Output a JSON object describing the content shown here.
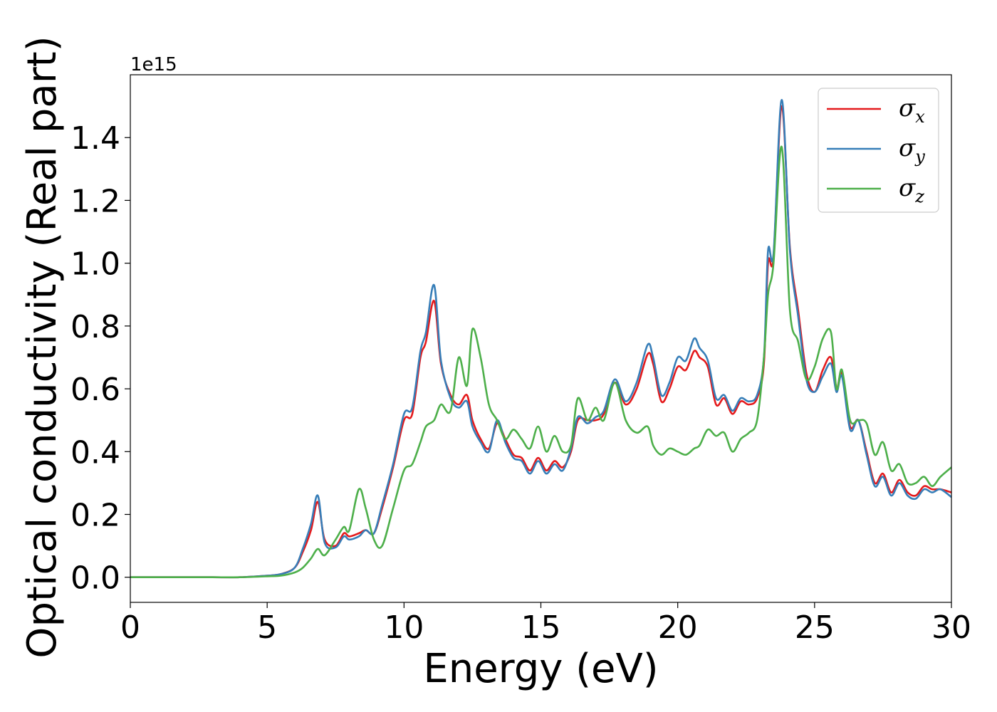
{
  "chart_data": {
    "type": "line",
    "title": "",
    "xlabel": "Energy (eV)",
    "ylabel": "Optical conductivity (Real part)",
    "y_offset_label": "1e15",
    "y_scale": 1000000000000000.0,
    "xlim": [
      0,
      30
    ],
    "ylim": [
      -0.08,
      1.6
    ],
    "xticks": [
      0,
      5,
      10,
      15,
      20,
      25,
      30
    ],
    "yticks": [
      0.0,
      0.2,
      0.4,
      0.6,
      0.8,
      1.0,
      1.2,
      1.4
    ],
    "grid": false,
    "legend_position": "top-right",
    "x": [
      0,
      1,
      2,
      3,
      4,
      5,
      5.5,
      6,
      6.3,
      6.6,
      6.85,
      7.1,
      7.5,
      7.8,
      8.0,
      8.35,
      8.6,
      8.9,
      9.2,
      9.6,
      10.0,
      10.3,
      10.6,
      10.8,
      11.1,
      11.35,
      11.7,
      12.0,
      12.3,
      12.5,
      12.8,
      13.1,
      13.4,
      13.7,
      14.0,
      14.3,
      14.6,
      14.9,
      15.2,
      15.5,
      15.8,
      16.1,
      16.35,
      16.7,
      17.0,
      17.3,
      17.7,
      18.1,
      18.5,
      18.9,
      19.1,
      19.4,
      19.7,
      20.0,
      20.3,
      20.6,
      20.8,
      21.1,
      21.4,
      21.7,
      22.0,
      22.3,
      22.6,
      22.9,
      23.15,
      23.3,
      23.5,
      23.8,
      24.1,
      24.4,
      24.7,
      25.0,
      25.3,
      25.6,
      25.8,
      26.0,
      26.3,
      26.6,
      26.9,
      27.2,
      27.5,
      27.8,
      28.1,
      28.4,
      28.7,
      29.0,
      29.3,
      29.6,
      30.0
    ],
    "series": [
      {
        "name": "σ_x",
        "label_base": "σ",
        "label_sub": "x",
        "color": "#e41a1c",
        "values": [
          0,
          0,
          0,
          0,
          0,
          0.005,
          0.01,
          0.03,
          0.08,
          0.15,
          0.24,
          0.12,
          0.1,
          0.14,
          0.13,
          0.14,
          0.15,
          0.14,
          0.22,
          0.35,
          0.5,
          0.52,
          0.7,
          0.75,
          0.88,
          0.68,
          0.58,
          0.55,
          0.58,
          0.5,
          0.44,
          0.41,
          0.49,
          0.44,
          0.39,
          0.38,
          0.34,
          0.38,
          0.34,
          0.37,
          0.35,
          0.4,
          0.5,
          0.5,
          0.5,
          0.52,
          0.62,
          0.55,
          0.6,
          0.71,
          0.68,
          0.56,
          0.6,
          0.67,
          0.66,
          0.72,
          0.7,
          0.67,
          0.55,
          0.57,
          0.52,
          0.56,
          0.55,
          0.57,
          0.68,
          1.0,
          1.02,
          1.5,
          1.05,
          0.85,
          0.65,
          0.59,
          0.66,
          0.7,
          0.6,
          0.65,
          0.48,
          0.5,
          0.4,
          0.3,
          0.33,
          0.27,
          0.31,
          0.27,
          0.26,
          0.29,
          0.28,
          0.28,
          0.27
        ],
        "sig_seq": [
          0,
          0,
          0,
          0,
          0,
          0.005,
          0.01,
          0.03,
          0.08,
          0.15,
          0.24,
          0.12,
          0.1,
          0.14,
          0.13,
          0.14,
          0.15,
          0.14,
          0.22,
          0.35,
          0.5,
          0.52,
          0.7,
          0.75,
          0.88,
          0.68,
          0.58,
          0.55,
          0.58,
          0.5,
          0.44,
          0.41,
          0.49,
          0.44,
          0.39,
          0.38,
          0.34,
          0.38,
          0.34,
          0.37,
          0.35,
          0.4,
          0.5,
          0.5,
          0.5,
          0.52,
          0.62,
          0.55,
          0.6,
          0.71,
          0.68,
          0.56,
          0.6,
          0.67,
          0.66,
          0.72,
          0.7,
          0.67,
          0.55,
          0.57,
          0.52,
          0.56,
          0.55,
          0.57,
          0.68,
          1.0,
          1.02,
          1.5,
          1.05,
          0.85,
          0.65,
          0.59,
          0.66,
          0.7,
          0.6,
          0.65,
          0.48,
          0.5,
          0.4,
          0.3,
          0.33,
          0.27,
          0.31,
          0.27,
          0.26,
          0.29,
          0.28,
          0.28,
          0.27
        ]
      },
      {
        "name": "σ_y",
        "label_base": "σ",
        "label_sub": "y",
        "color": "#377eb8",
        "values": [
          0,
          0,
          0,
          0,
          0,
          0.005,
          0.01,
          0.03,
          0.09,
          0.17,
          0.26,
          0.11,
          0.095,
          0.13,
          0.12,
          0.13,
          0.15,
          0.14,
          0.23,
          0.36,
          0.52,
          0.54,
          0.72,
          0.78,
          0.93,
          0.69,
          0.57,
          0.54,
          0.56,
          0.48,
          0.43,
          0.4,
          0.5,
          0.43,
          0.38,
          0.37,
          0.33,
          0.37,
          0.33,
          0.36,
          0.34,
          0.41,
          0.51,
          0.49,
          0.51,
          0.53,
          0.63,
          0.56,
          0.62,
          0.74,
          0.7,
          0.58,
          0.62,
          0.7,
          0.69,
          0.76,
          0.73,
          0.69,
          0.57,
          0.58,
          0.53,
          0.57,
          0.56,
          0.58,
          0.7,
          1.04,
          1.03,
          1.52,
          1.04,
          0.83,
          0.63,
          0.59,
          0.64,
          0.68,
          0.59,
          0.64,
          0.47,
          0.5,
          0.39,
          0.29,
          0.32,
          0.26,
          0.3,
          0.26,
          0.25,
          0.28,
          0.27,
          0.28,
          0.255
        ],
        "sig_seq": []
      },
      {
        "name": "σ_z",
        "label_base": "σ",
        "label_sub": "z",
        "color": "#4daf4a",
        "values": [
          0,
          0,
          0,
          0,
          0,
          0.003,
          0.005,
          0.015,
          0.03,
          0.06,
          0.09,
          0.07,
          0.12,
          0.16,
          0.15,
          0.28,
          0.22,
          0.12,
          0.1,
          0.22,
          0.34,
          0.36,
          0.43,
          0.48,
          0.5,
          0.55,
          0.53,
          0.7,
          0.61,
          0.79,
          0.7,
          0.55,
          0.5,
          0.44,
          0.47,
          0.44,
          0.41,
          0.48,
          0.4,
          0.45,
          0.4,
          0.42,
          0.57,
          0.5,
          0.54,
          0.5,
          0.62,
          0.5,
          0.46,
          0.48,
          0.42,
          0.39,
          0.41,
          0.4,
          0.39,
          0.41,
          0.42,
          0.47,
          0.45,
          0.46,
          0.4,
          0.44,
          0.46,
          0.5,
          0.7,
          0.9,
          1.0,
          1.37,
          0.85,
          0.75,
          0.63,
          0.67,
          0.76,
          0.78,
          0.6,
          0.66,
          0.5,
          0.5,
          0.49,
          0.39,
          0.43,
          0.34,
          0.36,
          0.3,
          0.3,
          0.32,
          0.29,
          0.32,
          0.35
        ],
        "sig_seq": []
      }
    ]
  }
}
